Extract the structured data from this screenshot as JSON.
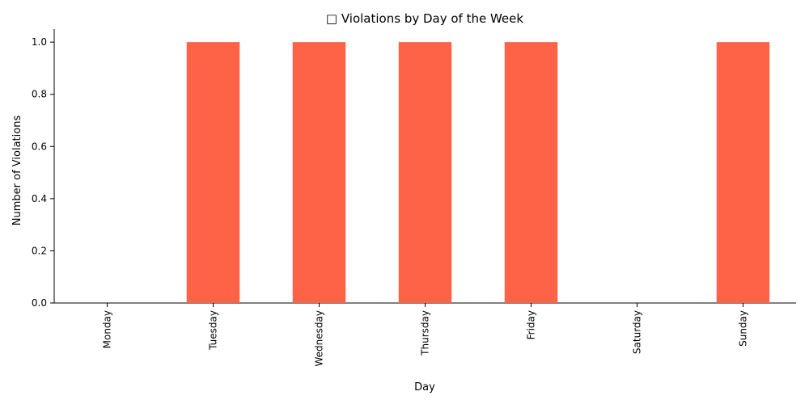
{
  "chart_data": {
    "type": "bar",
    "title": "□ Violations by Day of the Week",
    "xlabel": "Day",
    "ylabel": "Number of Violations",
    "categories": [
      "Monday",
      "Tuesday",
      "Wednesday",
      "Thursday",
      "Friday",
      "Saturday",
      "Sunday"
    ],
    "values": [
      0,
      1,
      1,
      1,
      1,
      0,
      1
    ],
    "ylim": [
      0,
      1.05
    ],
    "yticks": [
      "0.0",
      "0.2",
      "0.4",
      "0.6",
      "0.8",
      "1.0"
    ],
    "bar_color": "#ff6347",
    "grid": false,
    "x_tick_rotation": "vertical"
  }
}
